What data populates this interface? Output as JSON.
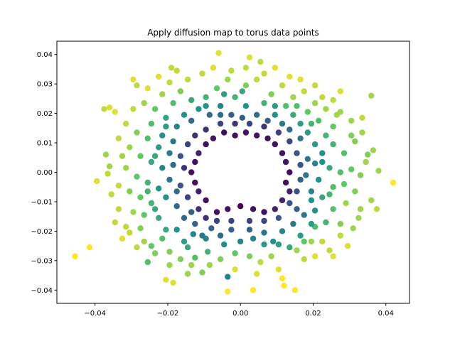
{
  "chart_data": {
    "type": "scatter",
    "title": "Apply diffusion map to torus data points",
    "xlabel": "",
    "ylabel": "",
    "xlim": [
      -0.0505,
      0.0465
    ],
    "ylim": [
      -0.0445,
      0.0445
    ],
    "xticks": [
      -0.04,
      -0.02,
      0.0,
      0.02,
      0.04
    ],
    "xtick_labels": [
      "−0.04",
      "−0.02",
      "0.00",
      "0.02",
      "0.04"
    ],
    "yticks": [
      -0.04,
      -0.03,
      -0.02,
      -0.01,
      0.0,
      0.01,
      0.02,
      0.03,
      0.04
    ],
    "ytick_labels": [
      "−0.04",
      "−0.03",
      "−0.02",
      "−0.01",
      "0.00",
      "0.01",
      "0.02",
      "0.03",
      "0.04"
    ],
    "grid": false,
    "colormap": "viridis",
    "colormap_stops": [
      "#440154",
      "#3b528b",
      "#21918c",
      "#5ec962",
      "#fde725"
    ],
    "color_value_range": [
      0,
      1
    ],
    "points": [
      [
        0.036,
        0.026,
        0.85
      ],
      [
        0.042,
        -0.0035,
        1.0
      ],
      [
        -0.0455,
        -0.0285,
        1.0
      ],
      [
        -0.0415,
        -0.0255,
        1.0
      ],
      [
        -0.006,
        0.0405,
        0.95
      ],
      [
        0.0025,
        0.039,
        0.95
      ],
      [
        0.0055,
        0.0375,
        0.9
      ],
      [
        -0.019,
        0.0355,
        0.9
      ],
      [
        -0.036,
        0.022,
        0.95
      ],
      [
        -0.0375,
        0.0215,
        0.9
      ],
      [
        -0.0345,
        0.0205,
        0.95
      ],
      [
        -0.0295,
        0.0315,
        0.95
      ],
      [
        -0.0285,
        0.0295,
        0.9
      ],
      [
        -0.037,
        0.006,
        0.85
      ],
      [
        -0.036,
        0.002,
        0.85
      ],
      [
        -0.0395,
        -0.003,
        0.95
      ],
      [
        -0.0365,
        -0.0005,
        0.9
      ],
      [
        0.0365,
        0.0075,
        0.85
      ],
      [
        0.038,
        0.0005,
        0.85
      ],
      [
        0.035,
        0.006,
        0.8
      ],
      [
        0.0375,
        -0.0125,
        0.9
      ],
      [
        0.036,
        -0.0095,
        0.85
      ],
      [
        0.033,
        -0.0125,
        0.85
      ],
      [
        0.029,
        -0.0105,
        0.85
      ],
      [
        0.0295,
        -0.025,
        0.95
      ],
      [
        0.0245,
        -0.0265,
        0.9
      ],
      [
        0.0225,
        -0.0235,
        0.9
      ],
      [
        0.0205,
        -0.0285,
        0.95
      ],
      [
        0.015,
        -0.04,
        1.0
      ],
      [
        0.0115,
        -0.036,
        1.0
      ],
      [
        0.0105,
        -0.033,
        0.95
      ],
      [
        0.012,
        -0.0385,
        1.0
      ],
      [
        -0.0035,
        -0.0355,
        0.45
      ],
      [
        -0.0015,
        -0.033,
        0.95
      ],
      [
        0.0045,
        -0.0345,
        0.95
      ],
      [
        -0.0035,
        -0.0405,
        1.0
      ],
      [
        0.0035,
        -0.04,
        1.0
      ],
      [
        -0.0205,
        -0.0365,
        0.95
      ],
      [
        -0.0185,
        -0.0375,
        0.95
      ],
      [
        -0.0255,
        -0.0305,
        0.7
      ],
      [
        -0.0145,
        -0.0345,
        0.85
      ],
      [
        -0.0125,
        -0.029,
        0.7
      ],
      [
        -0.0105,
        -0.034,
        0.8
      ],
      [
        -0.009,
        -0.027,
        0.65
      ],
      [
        -0.0325,
        -0.0225,
        0.95
      ],
      [
        -0.0345,
        -0.017,
        0.9
      ],
      [
        -0.0305,
        -0.0205,
        0.9
      ],
      [
        -0.0275,
        -0.019,
        0.8
      ],
      [
        -0.0295,
        -0.0135,
        0.85
      ],
      [
        -0.0265,
        -0.0145,
        0.75
      ],
      [
        -0.0225,
        -0.0155,
        0.6
      ],
      [
        -0.0215,
        -0.0225,
        0.7
      ],
      [
        -0.0195,
        -0.027,
        0.8
      ],
      [
        -0.0245,
        -0.025,
        0.75
      ],
      [
        -0.0175,
        -0.0195,
        0.5
      ],
      [
        -0.0155,
        -0.0235,
        0.55
      ],
      [
        -0.013,
        -0.021,
        0.45
      ],
      [
        -0.0105,
        -0.0215,
        0.4
      ],
      [
        -0.008,
        -0.019,
        0.3
      ],
      [
        -0.0055,
        -0.0215,
        0.35
      ],
      [
        -0.0025,
        -0.0195,
        0.3
      ],
      [
        0.0,
        -0.0235,
        0.45
      ],
      [
        0.0035,
        -0.0225,
        0.45
      ],
      [
        0.0065,
        -0.0205,
        0.4
      ],
      [
        0.009,
        -0.0235,
        0.5
      ],
      [
        0.0115,
        -0.02,
        0.45
      ],
      [
        0.0135,
        -0.0255,
        0.6
      ],
      [
        0.0165,
        -0.0215,
        0.55
      ],
      [
        0.0195,
        -0.0175,
        0.55
      ],
      [
        0.0175,
        -0.0145,
        0.4
      ],
      [
        0.0205,
        -0.013,
        0.5
      ],
      [
        0.0235,
        -0.017,
        0.65
      ],
      [
        0.0255,
        -0.0125,
        0.7
      ],
      [
        0.0275,
        -0.0175,
        0.8
      ],
      [
        0.031,
        -0.019,
        0.85
      ],
      [
        0.0225,
        -0.0085,
        0.6
      ],
      [
        0.0255,
        -0.005,
        0.7
      ],
      [
        0.0285,
        -0.004,
        0.75
      ],
      [
        0.0315,
        -0.0065,
        0.8
      ],
      [
        0.033,
        -0.001,
        0.8
      ],
      [
        0.0305,
        0.001,
        0.75
      ],
      [
        0.0275,
        0.0,
        0.7
      ],
      [
        0.0245,
        0.0015,
        0.6
      ],
      [
        0.0215,
        -0.0025,
        0.5
      ],
      [
        0.0195,
        -0.0065,
        0.45
      ],
      [
        0.018,
        -0.001,
        0.4
      ],
      [
        0.0205,
        0.003,
        0.45
      ],
      [
        0.0225,
        0.0065,
        0.5
      ],
      [
        0.0255,
        0.0095,
        0.65
      ],
      [
        0.0285,
        0.0065,
        0.7
      ],
      [
        0.0315,
        0.0105,
        0.8
      ],
      [
        0.0335,
        0.0135,
        0.85
      ],
      [
        0.0305,
        0.0175,
        0.85
      ],
      [
        0.0275,
        0.0205,
        0.85
      ],
      [
        0.0255,
        0.0155,
        0.75
      ],
      [
        0.0235,
        0.0125,
        0.65
      ],
      [
        0.0205,
        0.0095,
        0.55
      ],
      [
        0.0185,
        0.0135,
        0.55
      ],
      [
        0.0215,
        0.0175,
        0.7
      ],
      [
        0.0235,
        0.0215,
        0.85
      ],
      [
        0.0255,
        0.0245,
        0.9
      ],
      [
        0.0205,
        0.0235,
        0.85
      ],
      [
        0.0185,
        0.0205,
        0.75
      ],
      [
        0.0165,
        0.0165,
        0.55
      ],
      [
        0.0145,
        0.0195,
        0.6
      ],
      [
        0.0125,
        0.0225,
        0.7
      ],
      [
        0.0145,
        0.0255,
        0.85
      ],
      [
        0.0175,
        0.0275,
        0.9
      ],
      [
        0.0115,
        0.0295,
        0.9
      ],
      [
        0.0085,
        0.0265,
        0.8
      ],
      [
        0.0065,
        0.0235,
        0.65
      ],
      [
        0.0095,
        0.0195,
        0.5
      ],
      [
        0.0115,
        0.0165,
        0.4
      ],
      [
        0.0075,
        0.0175,
        0.3
      ],
      [
        0.0045,
        0.0195,
        0.35
      ],
      [
        0.0015,
        0.0225,
        0.5
      ],
      [
        -0.0015,
        0.0255,
        0.65
      ],
      [
        0.0015,
        0.0295,
        0.8
      ],
      [
        0.0045,
        0.0315,
        0.9
      ],
      [
        -0.0035,
        0.0315,
        0.85
      ],
      [
        -0.0065,
        0.0285,
        0.75
      ],
      [
        -0.0095,
        0.0255,
        0.65
      ],
      [
        -0.0055,
        0.0225,
        0.45
      ],
      [
        -0.0025,
        0.0195,
        0.3
      ],
      [
        -0.0085,
        0.0195,
        0.35
      ],
      [
        -0.0115,
        0.0215,
        0.5
      ],
      [
        -0.0135,
        0.0245,
        0.6
      ],
      [
        -0.0165,
        0.0275,
        0.8
      ],
      [
        -0.0195,
        0.0305,
        0.9
      ],
      [
        -0.0215,
        0.0265,
        0.85
      ],
      [
        -0.0185,
        0.0235,
        0.7
      ],
      [
        -0.0155,
        0.0195,
        0.5
      ],
      [
        -0.0175,
        0.0155,
        0.45
      ],
      [
        -0.0205,
        0.0185,
        0.6
      ],
      [
        -0.0235,
        0.0215,
        0.75
      ],
      [
        -0.0265,
        0.0235,
        0.85
      ],
      [
        -0.0245,
        0.0165,
        0.7
      ],
      [
        -0.0215,
        0.0125,
        0.5
      ],
      [
        -0.0185,
        0.0105,
        0.4
      ],
      [
        -0.0225,
        0.0085,
        0.55
      ],
      [
        -0.0255,
        0.0115,
        0.7
      ],
      [
        -0.0285,
        0.0135,
        0.8
      ],
      [
        -0.0305,
        0.0085,
        0.85
      ],
      [
        -0.0275,
        0.0055,
        0.75
      ],
      [
        -0.0245,
        0.0035,
        0.6
      ],
      [
        -0.0215,
        0.0015,
        0.45
      ],
      [
        -0.0195,
        -0.0025,
        0.4
      ],
      [
        -0.0225,
        -0.0055,
        0.5
      ],
      [
        -0.0255,
        -0.0035,
        0.65
      ],
      [
        -0.0285,
        -0.0015,
        0.75
      ],
      [
        -0.0315,
        0.0015,
        0.85
      ],
      [
        -0.0335,
        -0.0045,
        0.9
      ],
      [
        -0.0305,
        -0.0065,
        0.8
      ],
      [
        -0.0275,
        -0.0085,
        0.75
      ],
      [
        -0.0245,
        -0.0105,
        0.65
      ],
      [
        -0.0205,
        -0.0085,
        0.5
      ],
      [
        -0.0175,
        -0.0115,
        0.35
      ],
      [
        -0.0155,
        -0.0155,
        0.35
      ],
      [
        -0.0125,
        -0.0175,
        0.3
      ],
      [
        -0.0095,
        -0.0155,
        0.15
      ],
      [
        -0.0065,
        -0.0135,
        0.05
      ],
      [
        -0.0035,
        -0.0125,
        0.05
      ],
      [
        0.0,
        -0.0115,
        0.0
      ],
      [
        0.0035,
        -0.0125,
        0.05
      ],
      [
        0.0065,
        -0.0135,
        0.05
      ],
      [
        0.0095,
        -0.0125,
        0.1
      ],
      [
        0.0115,
        -0.0095,
        0.1
      ],
      [
        0.0135,
        -0.0065,
        0.1
      ],
      [
        0.0125,
        -0.0035,
        0.05
      ],
      [
        0.0135,
        0.0,
        0.05
      ],
      [
        0.0125,
        0.0035,
        0.05
      ],
      [
        0.0115,
        0.0065,
        0.05
      ],
      [
        0.0095,
        0.0095,
        0.05
      ],
      [
        0.0075,
        0.0115,
        0.05
      ],
      [
        0.0045,
        0.0125,
        0.05
      ],
      [
        0.0015,
        0.0135,
        0.05
      ],
      [
        -0.0015,
        0.0125,
        0.05
      ],
      [
        -0.0045,
        0.0135,
        0.05
      ],
      [
        -0.0075,
        0.0115,
        0.05
      ],
      [
        -0.0095,
        0.0095,
        0.05
      ],
      [
        -0.0115,
        0.0065,
        0.1
      ],
      [
        -0.0125,
        0.0035,
        0.05
      ],
      [
        -0.0135,
        0.0,
        0.05
      ],
      [
        -0.0125,
        -0.0035,
        0.05
      ],
      [
        -0.0115,
        -0.0065,
        0.1
      ],
      [
        -0.0095,
        -0.0095,
        0.05
      ],
      [
        -0.0145,
        -0.0085,
        0.2
      ],
      [
        -0.0165,
        -0.0045,
        0.25
      ],
      [
        -0.0155,
        0.0015,
        0.15
      ],
      [
        -0.0165,
        0.0055,
        0.25
      ],
      [
        -0.0145,
        0.0095,
        0.2
      ],
      [
        -0.0125,
        0.0125,
        0.15
      ],
      [
        -0.0095,
        0.0145,
        0.15
      ],
      [
        -0.0055,
        0.0165,
        0.2
      ],
      [
        -0.0015,
        0.0165,
        0.15
      ],
      [
        0.0025,
        0.0165,
        0.2
      ],
      [
        0.0065,
        0.0155,
        0.15
      ],
      [
        0.0105,
        0.0135,
        0.2
      ],
      [
        0.0135,
        0.0105,
        0.2
      ],
      [
        0.0155,
        0.0065,
        0.25
      ],
      [
        0.0165,
        0.0025,
        0.25
      ],
      [
        0.0165,
        -0.0025,
        0.3
      ],
      [
        0.0155,
        -0.0065,
        0.25
      ],
      [
        0.0135,
        -0.0105,
        0.25
      ],
      [
        0.0105,
        -0.0155,
        0.25
      ],
      [
        0.0065,
        -0.0165,
        0.2
      ],
      [
        0.0025,
        -0.0165,
        0.2
      ],
      [
        -0.0025,
        -0.0165,
        0.2
      ],
      [
        -0.0065,
        -0.0165,
        0.2
      ],
      [
        -0.0115,
        -0.0125,
        0.15
      ],
      [
        -0.0175,
        -0.0065,
        0.35
      ],
      [
        -0.0185,
        0.0025,
        0.35
      ],
      [
        0.0185,
        0.0045,
        0.4
      ],
      [
        0.0005,
        0.0185,
        0.3
      ],
      [
        0.0025,
        -0.0195,
        0.3
      ],
      [
        0.0145,
        -0.0175,
        0.4
      ],
      [
        0.0265,
        0.0195,
        0.85
      ],
      [
        0.0275,
        0.0275,
        0.95
      ],
      [
        0.0225,
        0.0255,
        0.9
      ],
      [
        0.0305,
        0.0125,
        0.8
      ],
      [
        0.0335,
        0.0185,
        0.9
      ],
      [
        0.0345,
        0.0035,
        0.85
      ],
      [
        0.0325,
        -0.0155,
        0.85
      ],
      [
        0.0275,
        -0.0215,
        0.9
      ],
      [
        0.0255,
        -0.0285,
        0.95
      ],
      [
        0.0195,
        -0.0235,
        0.85
      ],
      [
        0.0175,
        -0.0295,
        0.9
      ],
      [
        0.0155,
        -0.0265,
        0.85
      ],
      [
        0.0085,
        -0.0285,
        0.85
      ],
      [
        0.0055,
        -0.0305,
        0.9
      ],
      [
        0.0025,
        -0.0285,
        0.8
      ],
      [
        -0.0015,
        -0.0275,
        0.75
      ],
      [
        -0.0055,
        -0.0295,
        0.8
      ],
      [
        -0.0085,
        -0.0315,
        0.85
      ],
      [
        -0.0135,
        -0.0315,
        0.85
      ],
      [
        -0.0165,
        -0.0295,
        0.8
      ],
      [
        -0.0195,
        -0.0315,
        0.85
      ],
      [
        -0.0235,
        -0.0275,
        0.8
      ],
      [
        -0.0265,
        -0.0235,
        0.85
      ],
      [
        -0.0285,
        -0.0255,
        0.9
      ],
      [
        -0.0315,
        -0.0185,
        0.9
      ],
      [
        -0.0335,
        -0.0125,
        0.9
      ],
      [
        -0.0355,
        -0.0075,
        0.9
      ],
      [
        -0.0325,
        0.0055,
        0.85
      ],
      [
        -0.0335,
        0.0115,
        0.9
      ],
      [
        -0.0315,
        0.0165,
        0.9
      ],
      [
        -0.0295,
        0.0215,
        0.9
      ],
      [
        -0.0255,
        0.0285,
        0.95
      ],
      [
        -0.0225,
        0.0325,
        0.95
      ],
      [
        -0.0175,
        0.0345,
        0.9
      ],
      [
        -0.0145,
        0.0315,
        0.9
      ],
      [
        -0.0105,
        0.0335,
        0.9
      ],
      [
        -0.0075,
        0.0355,
        0.95
      ],
      [
        -0.0025,
        0.0345,
        0.9
      ],
      [
        0.0015,
        0.0355,
        0.9
      ],
      [
        0.0065,
        0.0335,
        0.9
      ],
      [
        0.0095,
        0.0355,
        0.95
      ],
      [
        0.0135,
        0.0325,
        0.95
      ],
      [
        0.0165,
        0.0315,
        0.95
      ],
      [
        0.0205,
        0.0295,
        0.9
      ],
      [
        0.0005,
        0.0275,
        0.6
      ],
      [
        -0.0045,
        0.0265,
        0.55
      ],
      [
        0.0095,
        0.0225,
        0.55
      ],
      [
        0.0155,
        0.0225,
        0.7
      ],
      [
        0.0195,
        0.0165,
        0.65
      ],
      [
        0.0165,
        0.0115,
        0.4
      ],
      [
        0.0225,
        0.0035,
        0.5
      ],
      [
        0.0245,
        -0.0075,
        0.65
      ],
      [
        0.0205,
        -0.0185,
        0.7
      ],
      [
        0.0175,
        -0.0235,
        0.75
      ],
      [
        0.0105,
        -0.0245,
        0.55
      ],
      [
        0.0065,
        -0.0245,
        0.55
      ],
      [
        -0.0045,
        -0.0245,
        0.5
      ],
      [
        -0.0095,
        -0.0225,
        0.45
      ],
      [
        -0.0145,
        -0.0255,
        0.6
      ],
      [
        -0.0205,
        -0.0195,
        0.6
      ],
      [
        -0.0235,
        -0.0125,
        0.6
      ],
      [
        -0.0255,
        -0.0065,
        0.65
      ],
      [
        -0.0235,
        0.0055,
        0.6
      ],
      [
        -0.0205,
        0.0155,
        0.55
      ],
      [
        -0.0135,
        0.0175,
        0.35
      ],
      [
        -0.0095,
        0.0225,
        0.5
      ],
      [
        -0.0055,
        0.0195,
        0.35
      ],
      [
        0.0135,
        0.0145,
        0.35
      ],
      [
        0.0195,
        -0.0095,
        0.5
      ],
      [
        0.0155,
        -0.0125,
        0.3
      ],
      [
        -0.0135,
        -0.0135,
        0.3
      ],
      [
        -0.0195,
        0.0065,
        0.4
      ]
    ]
  }
}
